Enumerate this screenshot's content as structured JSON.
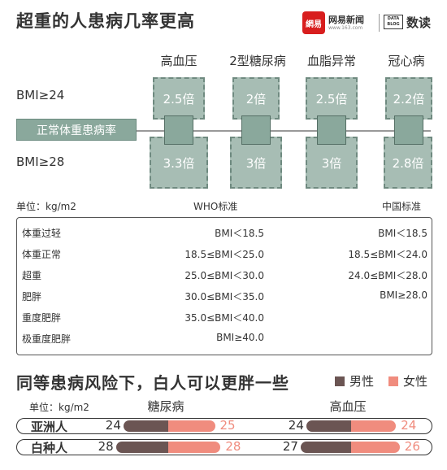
{
  "header": {
    "title": "超重的人患病几率更高",
    "logo_mark": "網易",
    "logo_netease": "网易新闻",
    "logo_url": "www.163.com",
    "logo_data": "DATA BLOG",
    "logo_shudu": "数读"
  },
  "colors": {
    "teal": "#8aa89c",
    "teal_light": "#a7bdb4",
    "male": "#6b5553",
    "female": "#f08c7e"
  },
  "chart_data": [
    {
      "type": "table",
      "title": "超重的人患病几率更高",
      "reference_label": "正常体重患病率",
      "rows": [
        {
          "label": "BMI≥24",
          "values": [
            "2.5倍",
            "2倍",
            "2.5倍",
            "2.2倍"
          ]
        },
        {
          "label": "BMI≥28",
          "values": [
            "3.3倍",
            "3倍",
            "3倍",
            "2.8倍"
          ]
        }
      ],
      "categories": [
        "高血压",
        "2型糖尿病",
        "血脂异常",
        "冠心病"
      ]
    },
    {
      "type": "table",
      "unit": "单位：kg/m2",
      "columns": [
        "WHO标准",
        "中国标准"
      ],
      "rows": [
        {
          "category": "体重过轻",
          "who": "BMI＜18.5",
          "china": "BMI＜18.5"
        },
        {
          "category": "体重正常",
          "who": "18.5≤BMI＜25.0",
          "china": "18.5≤BMI＜24.0"
        },
        {
          "category": "超重",
          "who": "25.0≤BMI＜30.0",
          "china": "24.0≤BMI＜28.0"
        },
        {
          "category": "肥胖",
          "who": "30.0≤BMI＜35.0",
          "china": "BMI≥28.0"
        },
        {
          "category": "重度肥胖",
          "who": "35.0≤BMI＜40.0",
          "china": ""
        },
        {
          "category": "极重度肥胖",
          "who": "BMI≥40.0",
          "china": ""
        }
      ]
    },
    {
      "type": "bar",
      "title": "同等患病风险下，白人可以更胖一些",
      "unit": "单位：kg/m2",
      "legend": [
        "男性",
        "女性"
      ],
      "groups": [
        "糖尿病",
        "高血压"
      ],
      "rows": [
        "亚洲人",
        "白种人"
      ],
      "series": [
        {
          "name": "亚洲人",
          "diabetes": {
            "male": 24,
            "female": 25
          },
          "hypertension": {
            "male": 24,
            "female": 24
          }
        },
        {
          "name": "白种人",
          "diabetes": {
            "male": 28,
            "female": 28
          },
          "hypertension": {
            "male": 27,
            "female": 26
          }
        }
      ]
    }
  ]
}
